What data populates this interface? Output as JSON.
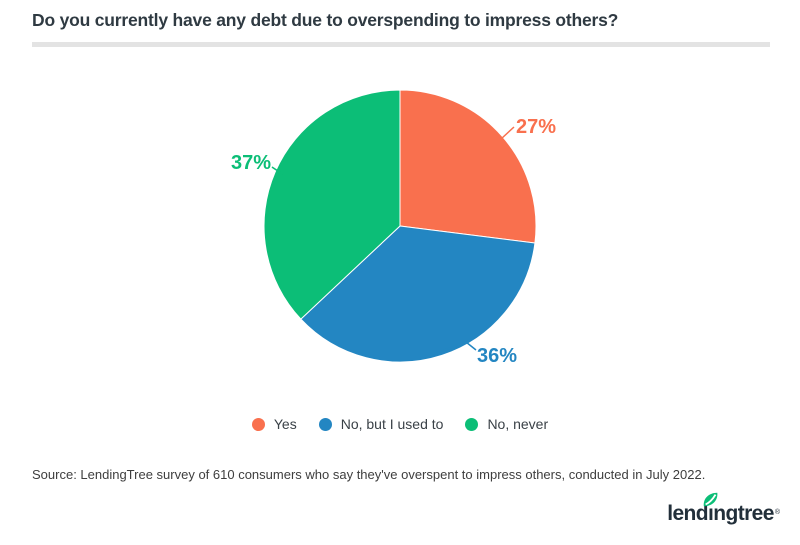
{
  "header": {
    "title": "Do you currently have any debt due to overspending to impress others?"
  },
  "chart_data": {
    "type": "pie",
    "title": "Do you currently have any debt due to overspending to impress others?",
    "labels": [
      "Yes",
      "No, but I used to",
      "No, never"
    ],
    "values": [
      27,
      36,
      37
    ],
    "value_labels": [
      "27%",
      "36%",
      "37%"
    ],
    "colors": [
      "#F9704E",
      "#2386C2",
      "#0CBE77"
    ],
    "start_angle_deg": 0,
    "direction": "clockwise",
    "legend_position": "bottom"
  },
  "legend": {
    "items": [
      {
        "label": "Yes",
        "color": "#F9704E"
      },
      {
        "label": "No, but I used to",
        "color": "#2386C2"
      },
      {
        "label": "No, never",
        "color": "#0CBE77"
      }
    ]
  },
  "footer": {
    "source": "Source: LendingTree  survey of 610 consumers who say they've overspent to impress others, conducted in July 2022.",
    "logo_text": "lendingtree",
    "logo_trademark": "®",
    "logo_leaf_color": "#0CBE77",
    "logo_text_color": "#222f3a"
  }
}
